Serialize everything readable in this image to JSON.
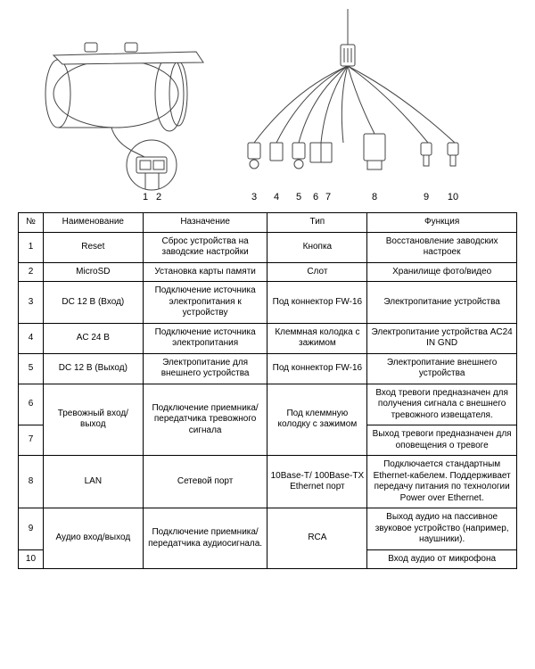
{
  "diagram": {
    "numbers_left": [
      "1",
      "2"
    ],
    "numbers_right": [
      "3",
      "4",
      "5",
      "6",
      "7",
      "8",
      "9",
      "10"
    ],
    "stroke_color": "#333333",
    "stroke_width": 1
  },
  "table": {
    "headers": [
      "№",
      "Наименование",
      "Назначение",
      "Тип",
      "Функция"
    ],
    "rows": [
      {
        "num": "1",
        "name": "Reset",
        "purpose": "Сброс устройства на заводские настройки",
        "type": "Кнопка",
        "func": "Восстановление заводских настроек"
      },
      {
        "num": "2",
        "name": "MicroSD",
        "purpose": "Установка карты памяти",
        "type": "Слот",
        "func": "Хранилище фото/видео"
      },
      {
        "num": "3",
        "name": "DC 12 В (Вход)",
        "purpose": "Подключение источника электропитания к устройству",
        "type": "Под коннектор FW-16",
        "func": "Электропитание устройства"
      },
      {
        "num": "4",
        "name": "AC 24 В",
        "purpose": "Подключение источника электропитания",
        "type": "Клеммная колодка с зажимом",
        "func": "Электропитание устройства AC24 IN GND"
      },
      {
        "num": "5",
        "name": "DC 12 В (Выход)",
        "purpose": "Электропитание для внешнего устройства",
        "type": "Под коннектор FW-16",
        "func": "Электропитание внешнего устройства"
      },
      {
        "num": "6",
        "name_rowspan": 2,
        "name": "Тревожный вход/выход",
        "purpose_rowspan": 2,
        "purpose": "Подключение приемника/передатчика тревожного сигнала",
        "type_rowspan": 2,
        "type": "Под клеммную колодку с зажимом",
        "func": "Вход тревоги предназначен для получения сигнала с внешнего тревожного извещателя."
      },
      {
        "num": "7",
        "func": "Выход тревоги предназначен для оповещения о тревоге"
      },
      {
        "num": "8",
        "name": "LAN",
        "purpose": "Сетевой порт",
        "type": "10Base-T/ 100Base-TX Ethernet порт",
        "func": "Подключается стандартным Ethernet-кабелем. Поддерживает передачу питания по технологии Power over Ethernet."
      },
      {
        "num": "9",
        "name_rowspan": 2,
        "name": "Аудио вход/выход",
        "purpose_rowspan": 2,
        "purpose": "Подключение приемника/передатчика аудиосигнала.",
        "type_rowspan": 2,
        "type": "RCA",
        "func": "Выход аудио на пассивное звуковое устройство (например, наушники)."
      },
      {
        "num": "10",
        "func": "Вход аудио от микрофона"
      }
    ],
    "border_color": "#000000",
    "font_size": 10,
    "background_color": "#ffffff"
  }
}
